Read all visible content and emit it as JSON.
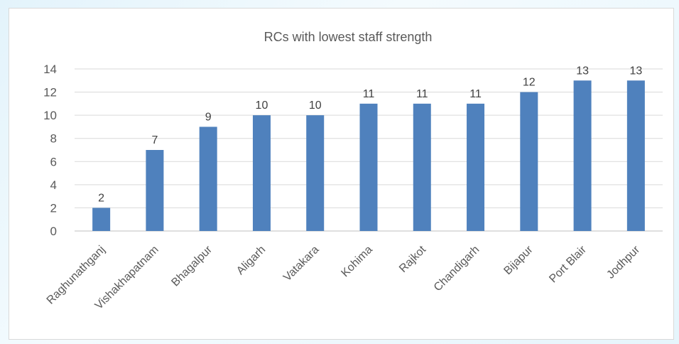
{
  "chart_data": {
    "type": "bar",
    "title": "RCs with lowest staff strength",
    "categories": [
      "Raghunathganj",
      "Vishakhapatnam",
      "Bhagalpur",
      "Aligarh",
      "Vatakara",
      "Kohima",
      "Rajkot",
      "Chandigarh",
      "Bijapur",
      "Port Blair",
      "Jodhpur"
    ],
    "values": [
      2,
      7,
      9,
      10,
      10,
      11,
      11,
      11,
      12,
      13,
      13
    ],
    "ylim": [
      0,
      14
    ],
    "yticks": [
      "0",
      "2",
      "4",
      "6",
      "8",
      "10",
      "12",
      "14"
    ],
    "grid": true,
    "bar_color": "#4f81bd",
    "data_labels": true
  }
}
